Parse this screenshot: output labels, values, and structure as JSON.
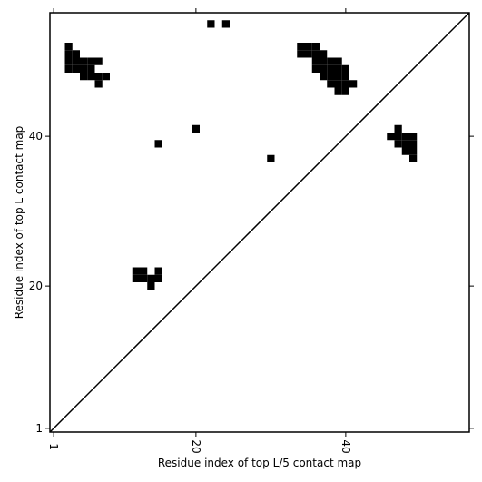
{
  "chart_data": {
    "type": "scatter",
    "marker": "square",
    "color": "#000000",
    "x_label": "Residue index of top L/5 contact map",
    "y_label": "Residue index of top L contact map",
    "x": [
      3,
      3,
      3,
      3,
      4,
      4,
      4,
      5,
      5,
      5,
      6,
      6,
      6,
      7,
      7,
      7,
      8,
      22,
      24,
      34,
      34,
      35,
      35,
      36,
      36,
      36,
      36,
      37,
      37,
      37,
      37,
      38,
      38,
      38,
      38,
      39,
      39,
      39,
      39,
      39,
      40,
      40,
      40,
      40,
      41,
      15,
      20,
      30,
      46,
      47,
      47,
      47,
      48,
      48,
      48,
      49,
      49,
      49,
      49,
      12,
      12,
      13,
      13,
      14,
      14,
      15,
      15
    ],
    "y": [
      49,
      50,
      51,
      52,
      49,
      50,
      51,
      48,
      49,
      50,
      48,
      49,
      50,
      50,
      48,
      47,
      48,
      55,
      55,
      51,
      52,
      51,
      52,
      49,
      50,
      51,
      52,
      48,
      49,
      50,
      51,
      47,
      48,
      49,
      50,
      46,
      47,
      48,
      49,
      50,
      46,
      47,
      48,
      49,
      47,
      39,
      41,
      37,
      40,
      39,
      40,
      41,
      38,
      39,
      40,
      37,
      38,
      39,
      40,
      21,
      22,
      21,
      22,
      20,
      21,
      21,
      22
    ],
    "xlim": [
      0.5,
      56.5
    ],
    "ylim": [
      0.5,
      56.5
    ],
    "xticks": [
      1,
      20,
      40
    ],
    "yticks": [
      1,
      20,
      40
    ],
    "xtick_rotation": 90,
    "diagonal": true
  }
}
